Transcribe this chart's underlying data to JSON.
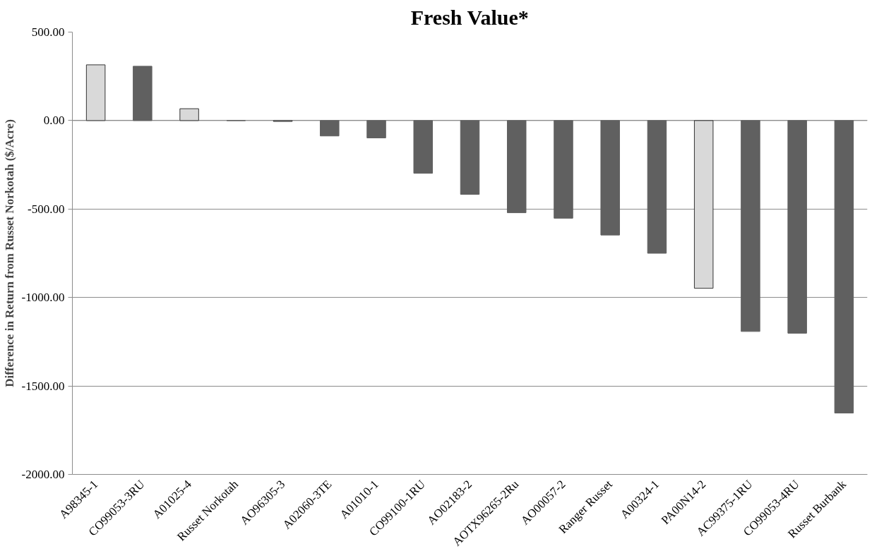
{
  "chart_data": {
    "type": "bar",
    "title": "Fresh Value*",
    "ylabel": "Difference in Return from Russet Norkotah ($/Acre)",
    "categories": [
      "A98345-1",
      "CO99053-3RU",
      "A01025-4",
      "Russet Norkotah",
      "AO96305-3",
      "A02060-3TE",
      "A01010-1",
      "CO99100-1RU",
      "AO02183-2",
      "AOTX96265-2Ru",
      "AO00057-2",
      "Ranger Russet",
      "A00324-1",
      "PA00N14-2",
      "AC99375-1RU",
      "CO99053-4RU",
      "Russet Burbank"
    ],
    "values": [
      315,
      307,
      67,
      0,
      -5,
      -87,
      -98,
      -298,
      -417,
      -521,
      -552,
      -647,
      -750,
      -948,
      -1192,
      -1202,
      -1653
    ],
    "colors": [
      "#d9d9d9",
      "#606060",
      "#d9d9d9",
      "#606060",
      "#d9d9d9",
      "#606060",
      "#606060",
      "#606060",
      "#606060",
      "#606060",
      "#606060",
      "#606060",
      "#606060",
      "#d9d9d9",
      "#606060",
      "#606060",
      "#606060"
    ],
    "ylim": [
      -2000,
      500
    ],
    "yticks": [
      {
        "value": -2000,
        "label": "-2000.00"
      },
      {
        "value": -1500,
        "label": "-1500.00"
      },
      {
        "value": -1000,
        "label": "-1000.00"
      },
      {
        "value": -500,
        "label": "-500.00"
      },
      {
        "value": 0,
        "label": "0.00"
      },
      {
        "value": 500,
        "label": "500.00"
      }
    ],
    "grid": "y"
  }
}
